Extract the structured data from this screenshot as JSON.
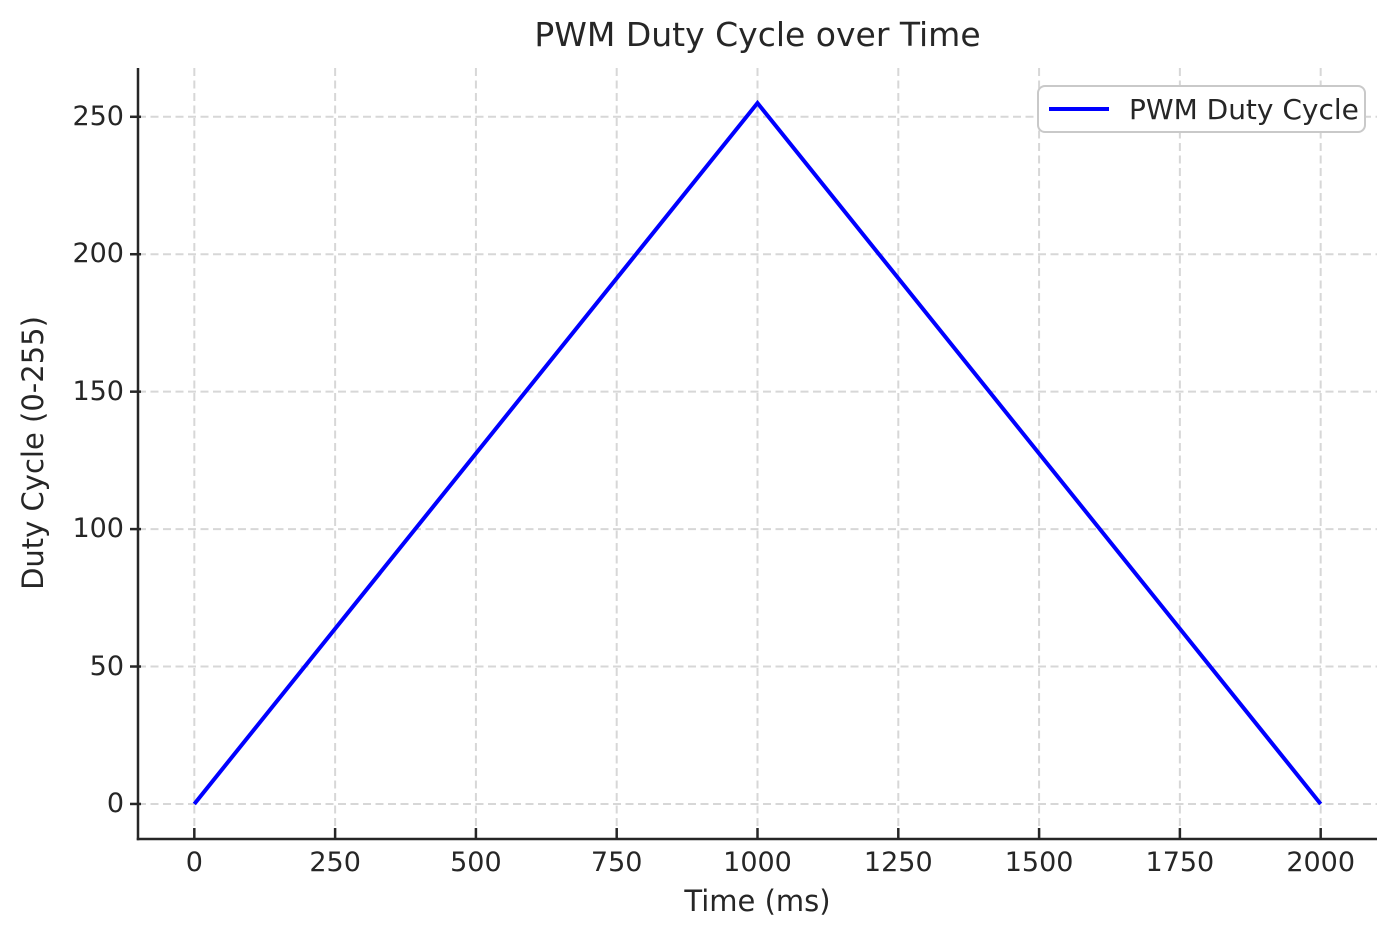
{
  "style": {
    "background": "#ffffff",
    "text_color": "#262626",
    "axis_color": "#262626",
    "grid_color": "#d7d7d7",
    "legend_border_color": "#c9c9c9",
    "legend_background": "#ffffff"
  },
  "chart_data": {
    "type": "line",
    "title": "PWM Duty Cycle over Time",
    "xlabel": "Time (ms)",
    "ylabel": "Duty Cycle (0-255)",
    "xlim": [
      -100,
      2100
    ],
    "ylim": [
      -12.75,
      267.75
    ],
    "xticks": [
      0,
      250,
      500,
      750,
      1000,
      1250,
      1500,
      1750,
      2000
    ],
    "yticks": [
      0,
      50,
      100,
      150,
      200,
      250
    ],
    "grid": true,
    "grid_linestyle": "dashed",
    "legend_position": "upper right",
    "series": [
      {
        "name": "PWM Duty Cycle",
        "color": "#0000ff",
        "x": [
          0,
          1000,
          2000
        ],
        "y": [
          0,
          255,
          0
        ]
      }
    ]
  }
}
